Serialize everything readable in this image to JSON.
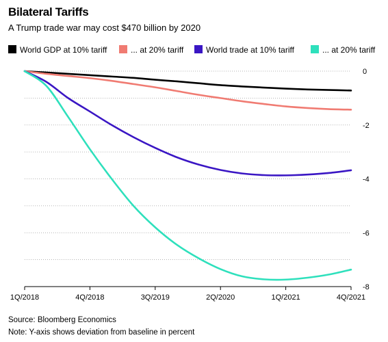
{
  "title": "Bilateral Tariffs",
  "subtitle": "A Trump trade war may cost $470 billion by 2020",
  "source": "Source: Bloomberg Economics",
  "note": "Note: Y-axis shows deviation from baseline in percent",
  "chart_data": {
    "type": "line",
    "title": "Bilateral Tariffs",
    "subtitle": "A Trump trade war may cost $470 billion by 2020",
    "xlabel": "",
    "ylabel": "",
    "x_ticks": [
      "1Q/2018",
      "4Q/2018",
      "3Q/2019",
      "2Q/2020",
      "1Q/2021",
      "4Q/2021"
    ],
    "x": [
      "1Q/2018",
      "2Q/2018",
      "3Q/2018",
      "4Q/2018",
      "1Q/2019",
      "2Q/2019",
      "3Q/2019",
      "4Q/2019",
      "1Q/2020",
      "2Q/2020",
      "3Q/2020",
      "4Q/2020",
      "1Q/2021",
      "2Q/2021",
      "3Q/2021",
      "4Q/2021"
    ],
    "y_ticks": [
      0,
      -2,
      -4,
      -6,
      -8
    ],
    "ylim": [
      -8,
      0
    ],
    "grid": true,
    "legend_position": "top",
    "series": [
      {
        "name": "World GDP at 10% tariff",
        "color": "#000000",
        "values": [
          0,
          -0.05,
          -0.1,
          -0.15,
          -0.2,
          -0.25,
          -0.32,
          -0.38,
          -0.45,
          -0.52,
          -0.57,
          -0.61,
          -0.65,
          -0.68,
          -0.7,
          -0.72
        ]
      },
      {
        "name": "... at 20% tariff",
        "color": "#f07b72",
        "values": [
          0,
          -0.1,
          -0.18,
          -0.26,
          -0.36,
          -0.48,
          -0.6,
          -0.74,
          -0.88,
          -1.0,
          -1.12,
          -1.22,
          -1.31,
          -1.37,
          -1.41,
          -1.43
        ]
      },
      {
        "name": "World trade at 10% tariff",
        "color": "#3a16c4",
        "values": [
          0,
          -0.4,
          -1.0,
          -1.5,
          -2.0,
          -2.45,
          -2.85,
          -3.2,
          -3.47,
          -3.67,
          -3.8,
          -3.86,
          -3.87,
          -3.84,
          -3.78,
          -3.68
        ]
      },
      {
        "name": "... at 20% tariff",
        "color": "#2ee0bc",
        "values": [
          0,
          -0.55,
          -1.7,
          -2.9,
          -4.0,
          -5.0,
          -5.8,
          -6.45,
          -6.95,
          -7.35,
          -7.62,
          -7.73,
          -7.74,
          -7.67,
          -7.55,
          -7.37
        ]
      }
    ]
  }
}
